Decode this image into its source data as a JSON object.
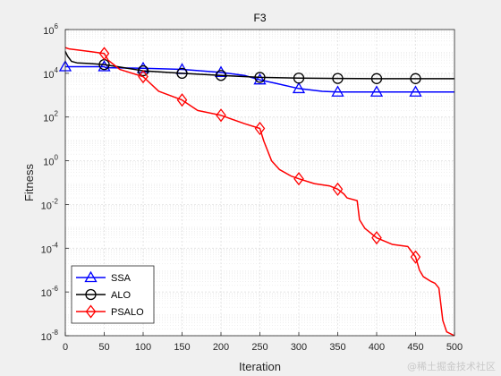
{
  "chart_data": {
    "type": "line",
    "title": "F3",
    "xlabel": "Iteration",
    "ylabel": "Fitness",
    "xlim": [
      0,
      500
    ],
    "ylim": [
      1e-08,
      1000000.0
    ],
    "yscale": "log",
    "grid": true,
    "minor_grid": true,
    "legend_position": "bottom-left",
    "x_ticks": [
      0,
      50,
      100,
      150,
      200,
      250,
      300,
      350,
      400,
      450,
      500
    ],
    "y_tick_exponents": [
      -8,
      -6,
      -4,
      -2,
      0,
      2,
      4,
      6
    ],
    "y_tick_base": "10",
    "series": [
      {
        "name": "SSA",
        "color": "#0000ff",
        "marker": "triangle",
        "x": [
          0,
          20,
          50,
          52,
          100,
          150,
          200,
          230,
          250,
          270,
          300,
          330,
          350,
          400,
          450,
          500
        ],
        "y": [
          20000,
          20000,
          20000,
          18000,
          17000,
          15000,
          11000,
          8000,
          5000,
          3500,
          2000,
          1500,
          1400,
          1400,
          1400,
          1400
        ],
        "marker_x": [
          0,
          50,
          100,
          150,
          200,
          250,
          300,
          350,
          400,
          450
        ]
      },
      {
        "name": "ALO",
        "color": "#000000",
        "marker": "circle",
        "x": [
          0,
          3,
          8,
          15,
          30,
          50,
          100,
          150,
          200,
          250,
          300,
          350,
          400,
          450,
          500
        ],
        "y": [
          100000,
          60000,
          35000,
          30000,
          28000,
          25000,
          13000,
          10000,
          8000,
          6500,
          6000,
          5800,
          5700,
          5700,
          5700
        ],
        "marker_x": [
          50,
          100,
          150,
          200,
          250,
          300,
          350,
          400,
          450
        ]
      },
      {
        "name": "PSALO",
        "color": "#ff0000",
        "marker": "diamond",
        "x": [
          0,
          5,
          30,
          50,
          55,
          70,
          100,
          120,
          150,
          170,
          200,
          230,
          250,
          255,
          265,
          275,
          290,
          300,
          320,
          340,
          350,
          358,
          362,
          375,
          378,
          385,
          400,
          420,
          440,
          450,
          455,
          460,
          470,
          475,
          480,
          485,
          490,
          500
        ],
        "y": [
          150000,
          130000,
          100000,
          80000,
          40000,
          15000,
          7000,
          1500,
          600,
          200,
          120,
          50,
          30,
          8,
          1,
          0.4,
          0.2,
          0.15,
          0.09,
          0.07,
          0.05,
          0.03,
          0.02,
          0.015,
          0.002,
          0.0008,
          0.0003,
          0.00015,
          0.00012,
          4e-05,
          1e-05,
          5e-06,
          3e-06,
          2.5e-06,
          1.5e-06,
          5e-08,
          1.5e-08,
          1e-08
        ],
        "marker_x": [
          50,
          100,
          150,
          200,
          250,
          300,
          350,
          400,
          450
        ]
      }
    ]
  },
  "watermark": "@稀土掘金技术社区"
}
